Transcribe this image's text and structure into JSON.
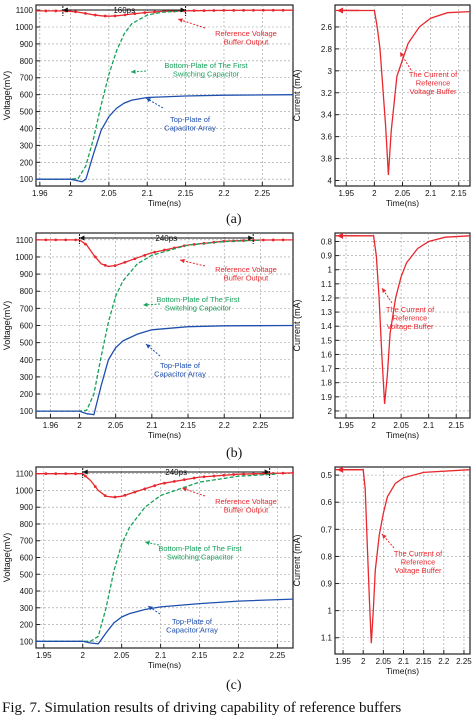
{
  "caption": "Fig. 7. Simulation results of driving capability of reference buffers",
  "chart_data": [
    {
      "panel": "(a)",
      "type": "line",
      "xlabel": "Time(ns)",
      "ylabel": "Voltage(mV)",
      "xlim": [
        1.955,
        2.29
      ],
      "ylim": [
        60,
        1130
      ],
      "xticks": [
        "1.96",
        "2",
        "2.05",
        "2.1",
        "2.15",
        "2.2",
        "2.25"
      ],
      "yticks": [
        "100",
        "200",
        "300",
        "400",
        "500",
        "600",
        "700",
        "800",
        "900",
        "1000",
        "1100"
      ],
      "grid": true,
      "span": {
        "label": "160ps",
        "x0": 1.99,
        "x1": 2.15,
        "y": 1115
      },
      "annotations": [
        "Reference Voltage Buffer Output",
        "Bottom-Plate of The First Switching Capacitor",
        "Top-Plate of Capacitor Array"
      ],
      "series": [
        {
          "name": "Reference Voltage Buffer Output",
          "color": "#e8282e",
          "x": [
            1.955,
            1.99,
            2.0,
            2.01,
            2.02,
            2.03,
            2.04,
            2.05,
            2.06,
            2.07,
            2.08,
            2.1,
            2.12,
            2.15,
            2.2,
            2.25,
            2.29
          ],
          "y": [
            1095,
            1095,
            1093,
            1088,
            1080,
            1072,
            1066,
            1064,
            1066,
            1071,
            1077,
            1086,
            1092,
            1096,
            1098,
            1099,
            1099
          ]
        },
        {
          "name": "Bottom-Plate of The First Switching Capacitor",
          "color": "#16a05a",
          "x": [
            1.955,
            2.0,
            2.01,
            2.02,
            2.03,
            2.04,
            2.05,
            2.06,
            2.07,
            2.08,
            2.1,
            2.12,
            2.15
          ],
          "y": [
            100,
            100,
            105,
            180,
            340,
            540,
            720,
            860,
            960,
            1020,
            1070,
            1088,
            1095
          ]
        },
        {
          "name": "Top-Plate of Capacitor Array",
          "color": "#1f4fae",
          "x": [
            1.955,
            2.0,
            2.01,
            2.015,
            2.02,
            2.03,
            2.04,
            2.05,
            2.06,
            2.07,
            2.08,
            2.1,
            2.15,
            2.2,
            2.29
          ],
          "y": [
            100,
            100,
            90,
            85,
            100,
            250,
            390,
            470,
            520,
            550,
            568,
            583,
            592,
            597,
            600
          ]
        }
      ]
    },
    {
      "panel": "(a)",
      "type": "line",
      "xlabel": "Time(ns)",
      "ylabel": "Current (mA)",
      "xlim": [
        1.93,
        2.17
      ],
      "ylim": [
        2.4,
        4.05
      ],
      "y_inverted": true,
      "xticks": [
        "1.95",
        "2",
        "2.05",
        "2.1",
        "2.15"
      ],
      "yticks": [
        "2.6",
        "2.8",
        "3",
        "3.2",
        "3.4",
        "3.6",
        "3.8",
        "4"
      ],
      "grid": true,
      "annotations": [
        "The Current of Reference Voltage Buffer"
      ],
      "series": [
        {
          "name": "The Current of Reference Voltage Buffer",
          "color": "#e8282e",
          "x": [
            1.93,
            2.0,
            2.005,
            2.01,
            2.02,
            2.025,
            2.03,
            2.04,
            2.06,
            2.08,
            2.1,
            2.13,
            2.17
          ],
          "y": [
            2.45,
            2.45,
            2.6,
            2.8,
            3.5,
            3.95,
            3.55,
            3.05,
            2.75,
            2.6,
            2.52,
            2.47,
            2.46
          ]
        }
      ]
    },
    {
      "panel": "(b)",
      "type": "line",
      "xlabel": "Time(ns)",
      "ylabel": "Voltage(mV)",
      "xlim": [
        1.94,
        2.295
      ],
      "ylim": [
        60,
        1140
      ],
      "xticks": [
        "1.96",
        "2",
        "2.05",
        "2.1",
        "2.15",
        "2.2",
        "2.25"
      ],
      "yticks": [
        "100",
        "200",
        "300",
        "400",
        "500",
        "600",
        "700",
        "800",
        "900",
        "1000",
        "1100"
      ],
      "grid": true,
      "span": {
        "label": "240ps",
        "x0": 2.0,
        "x1": 2.24,
        "y": 1112
      },
      "annotations": [
        "Reference Voltage Buffer Output",
        "Bottom-Plate of The First Switching Capacitor",
        "Top-Plate of Capacitor Array"
      ],
      "series": [
        {
          "name": "Reference Voltage Buffer Output",
          "color": "#e8282e",
          "x": [
            1.94,
            2.0,
            2.01,
            2.02,
            2.03,
            2.04,
            2.05,
            2.06,
            2.08,
            2.1,
            2.15,
            2.2,
            2.25,
            2.295
          ],
          "y": [
            1100,
            1100,
            1070,
            1010,
            960,
            945,
            950,
            965,
            995,
            1025,
            1070,
            1092,
            1099,
            1100
          ]
        },
        {
          "name": "Bottom-Plate of The First Switching Capacitor",
          "color": "#16a05a",
          "x": [
            1.94,
            2.0,
            2.01,
            2.02,
            2.03,
            2.04,
            2.05,
            2.06,
            2.08,
            2.1,
            2.15,
            2.2,
            2.25
          ],
          "y": [
            100,
            100,
            105,
            200,
            420,
            620,
            770,
            860,
            960,
            1010,
            1070,
            1090,
            1098
          ]
        },
        {
          "name": "Top-Plate of Capacitor Array",
          "color": "#1f4fae",
          "x": [
            1.94,
            2.0,
            2.01,
            2.02,
            2.03,
            2.04,
            2.05,
            2.06,
            2.08,
            2.1,
            2.15,
            2.2,
            2.295
          ],
          "y": [
            100,
            100,
            85,
            80,
            250,
            400,
            470,
            510,
            550,
            575,
            593,
            598,
            600
          ]
        }
      ]
    },
    {
      "panel": "(b)",
      "type": "line",
      "xlabel": "Time(ns)",
      "ylabel": "Current (mA)",
      "xlim": [
        1.93,
        2.175
      ],
      "ylim": [
        0.74,
        2.05
      ],
      "y_inverted": true,
      "xticks": [
        "1.95",
        "2",
        "2.05",
        "2.1",
        "2.15"
      ],
      "yticks": [
        "0.8",
        "0.9",
        "1",
        "1.1",
        "1.2",
        "1.3",
        "1.4",
        "1.5",
        "1.6",
        "1.7",
        "1.8",
        "1.9",
        "2"
      ],
      "grid": true,
      "annotations": [
        "The Current of Reference Voltage Buffer"
      ],
      "series": [
        {
          "name": "The Current of Reference Voltage Buffer",
          "color": "#e8282e",
          "x": [
            1.93,
            2.0,
            2.005,
            2.01,
            2.015,
            2.02,
            2.025,
            2.03,
            2.04,
            2.05,
            2.06,
            2.08,
            2.1,
            2.13,
            2.175
          ],
          "y": [
            0.76,
            0.76,
            0.9,
            1.2,
            1.6,
            1.95,
            1.75,
            1.45,
            1.2,
            1.05,
            0.95,
            0.85,
            0.8,
            0.77,
            0.76
          ]
        }
      ]
    },
    {
      "panel": "(c)",
      "type": "line",
      "xlabel": "Time(ns)",
      "ylabel": "Voltage(mV)",
      "xlim": [
        1.94,
        2.27
      ],
      "ylim": [
        60,
        1140
      ],
      "xticks": [
        "1.95",
        "2",
        "2.05",
        "2.1",
        "2.15",
        "2.2",
        "2.25"
      ],
      "yticks": [
        "100",
        "200",
        "300",
        "400",
        "500",
        "600",
        "700",
        "800",
        "900",
        "1000",
        "1100"
      ],
      "grid": true,
      "span": {
        "label": "240ps",
        "x0": 2.0,
        "x1": 2.24,
        "y": 1110
      },
      "annotations": [
        "Reference Voltage Buffer Output",
        "Bottom-Plate of The First Switching Capacitor",
        "Top-Plate of Capacitor Array"
      ],
      "series": [
        {
          "name": "Reference Voltage Buffer Output",
          "color": "#e8282e",
          "x": [
            1.94,
            2.0,
            2.01,
            2.02,
            2.03,
            2.04,
            2.05,
            2.06,
            2.08,
            2.1,
            2.15,
            2.2,
            2.27
          ],
          "y": [
            1100,
            1100,
            1060,
            1000,
            965,
            960,
            965,
            980,
            1010,
            1040,
            1080,
            1097,
            1105
          ]
        },
        {
          "name": "Bottom-Plate of The First Switching Capacitor",
          "color": "#16a05a",
          "x": [
            1.94,
            2.0,
            2.01,
            2.02,
            2.03,
            2.04,
            2.05,
            2.06,
            2.08,
            2.1,
            2.15,
            2.2,
            2.25
          ],
          "y": [
            100,
            100,
            100,
            130,
            300,
            520,
            680,
            780,
            900,
            970,
            1050,
            1085,
            1098
          ]
        },
        {
          "name": "Top-Plate of Capacitor Array",
          "color": "#1f4fae",
          "x": [
            1.94,
            2.0,
            2.01,
            2.02,
            2.03,
            2.04,
            2.05,
            2.06,
            2.08,
            2.1,
            2.15,
            2.2,
            2.27
          ],
          "y": [
            100,
            100,
            90,
            85,
            150,
            210,
            245,
            265,
            290,
            305,
            325,
            340,
            352
          ]
        }
      ]
    },
    {
      "panel": "(c)",
      "type": "line",
      "xlabel": "Time(ns)",
      "ylabel": "Current (mA)",
      "xlim": [
        1.93,
        2.265
      ],
      "ylim": [
        0.47,
        1.16
      ],
      "y_inverted": true,
      "xticks": [
        "1.95",
        "2",
        "2.05",
        "2.1",
        "2.15",
        "2.2",
        "2.25"
      ],
      "yticks": [
        "0.5",
        "0.6",
        "0.7",
        "0.8",
        "0.9",
        "1",
        "1.1"
      ],
      "grid": true,
      "annotations": [
        "The Current of Reference Voltage Buffer"
      ],
      "series": [
        {
          "name": "The Current of Reference Voltage Buffer",
          "color": "#e8282e",
          "x": [
            1.93,
            2.0,
            2.005,
            2.01,
            2.015,
            2.02,
            2.025,
            2.03,
            2.04,
            2.05,
            2.06,
            2.08,
            2.1,
            2.15,
            2.265
          ],
          "y": [
            0.48,
            0.48,
            0.55,
            0.75,
            0.95,
            1.12,
            1.0,
            0.85,
            0.72,
            0.64,
            0.58,
            0.53,
            0.51,
            0.49,
            0.48
          ]
        }
      ]
    }
  ]
}
